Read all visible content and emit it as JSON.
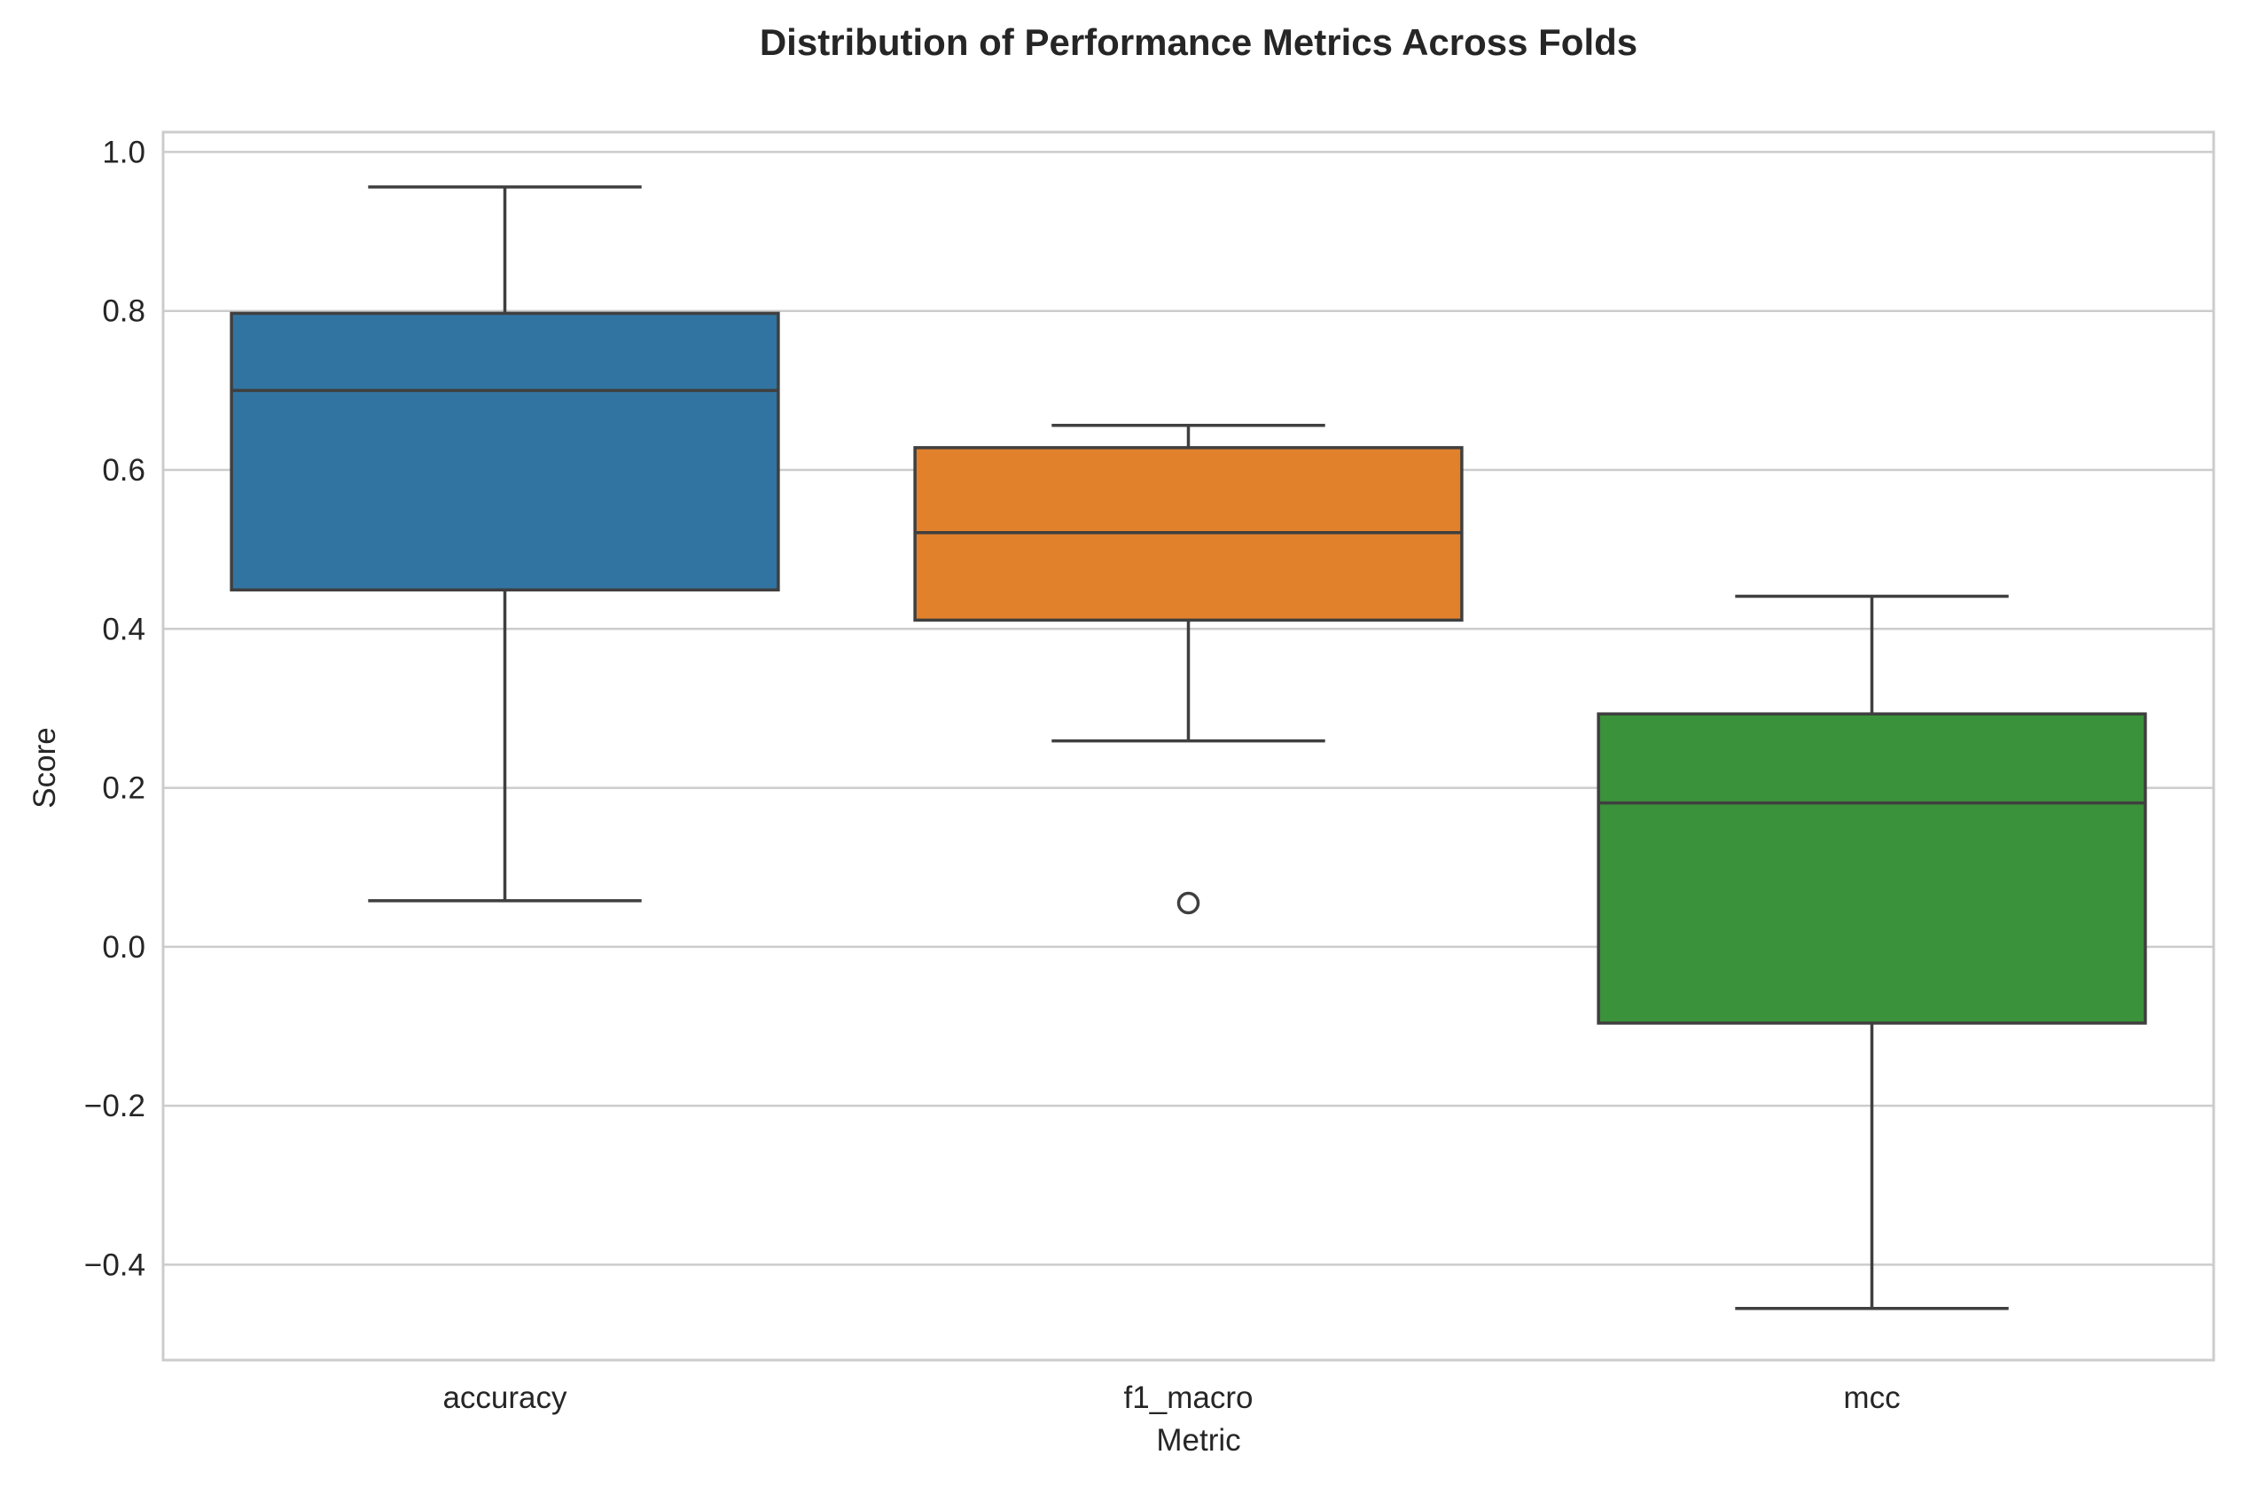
{
  "chart_data": {
    "type": "box",
    "title": "Distribution of Performance Metrics Across Folds",
    "xlabel": "Metric",
    "ylabel": "Score",
    "ylim": [
      -0.52,
      1.025
    ],
    "yticks": [
      {
        "value": 1.0,
        "label": "1.0"
      },
      {
        "value": 0.8,
        "label": "0.8"
      },
      {
        "value": 0.6,
        "label": "0.6"
      },
      {
        "value": 0.4,
        "label": "0.4"
      },
      {
        "value": 0.2,
        "label": "0.2"
      },
      {
        "value": 0.0,
        "label": "0.0"
      },
      {
        "value": -0.2,
        "label": "−0.2"
      },
      {
        "value": -0.4,
        "label": "−0.4"
      }
    ],
    "grid": true,
    "legend": "none",
    "categories": [
      "accuracy",
      "f1_macro",
      "mcc"
    ],
    "boxes": [
      {
        "name": "accuracy",
        "color": "#3274a1",
        "whisker_low": 0.058,
        "q1": 0.449,
        "median": 0.7,
        "q3": 0.797,
        "whisker_high": 0.956,
        "outliers": []
      },
      {
        "name": "f1_macro",
        "color": "#e1812c",
        "whisker_low": 0.259,
        "q1": 0.411,
        "median": 0.521,
        "q3": 0.628,
        "whisker_high": 0.656,
        "outliers": [
          0.055
        ]
      },
      {
        "name": "mcc",
        "color": "#3a923a",
        "whisker_low": -0.455,
        "q1": -0.096,
        "median": 0.181,
        "q3": 0.293,
        "whisker_high": 0.441,
        "outliers": []
      }
    ]
  }
}
